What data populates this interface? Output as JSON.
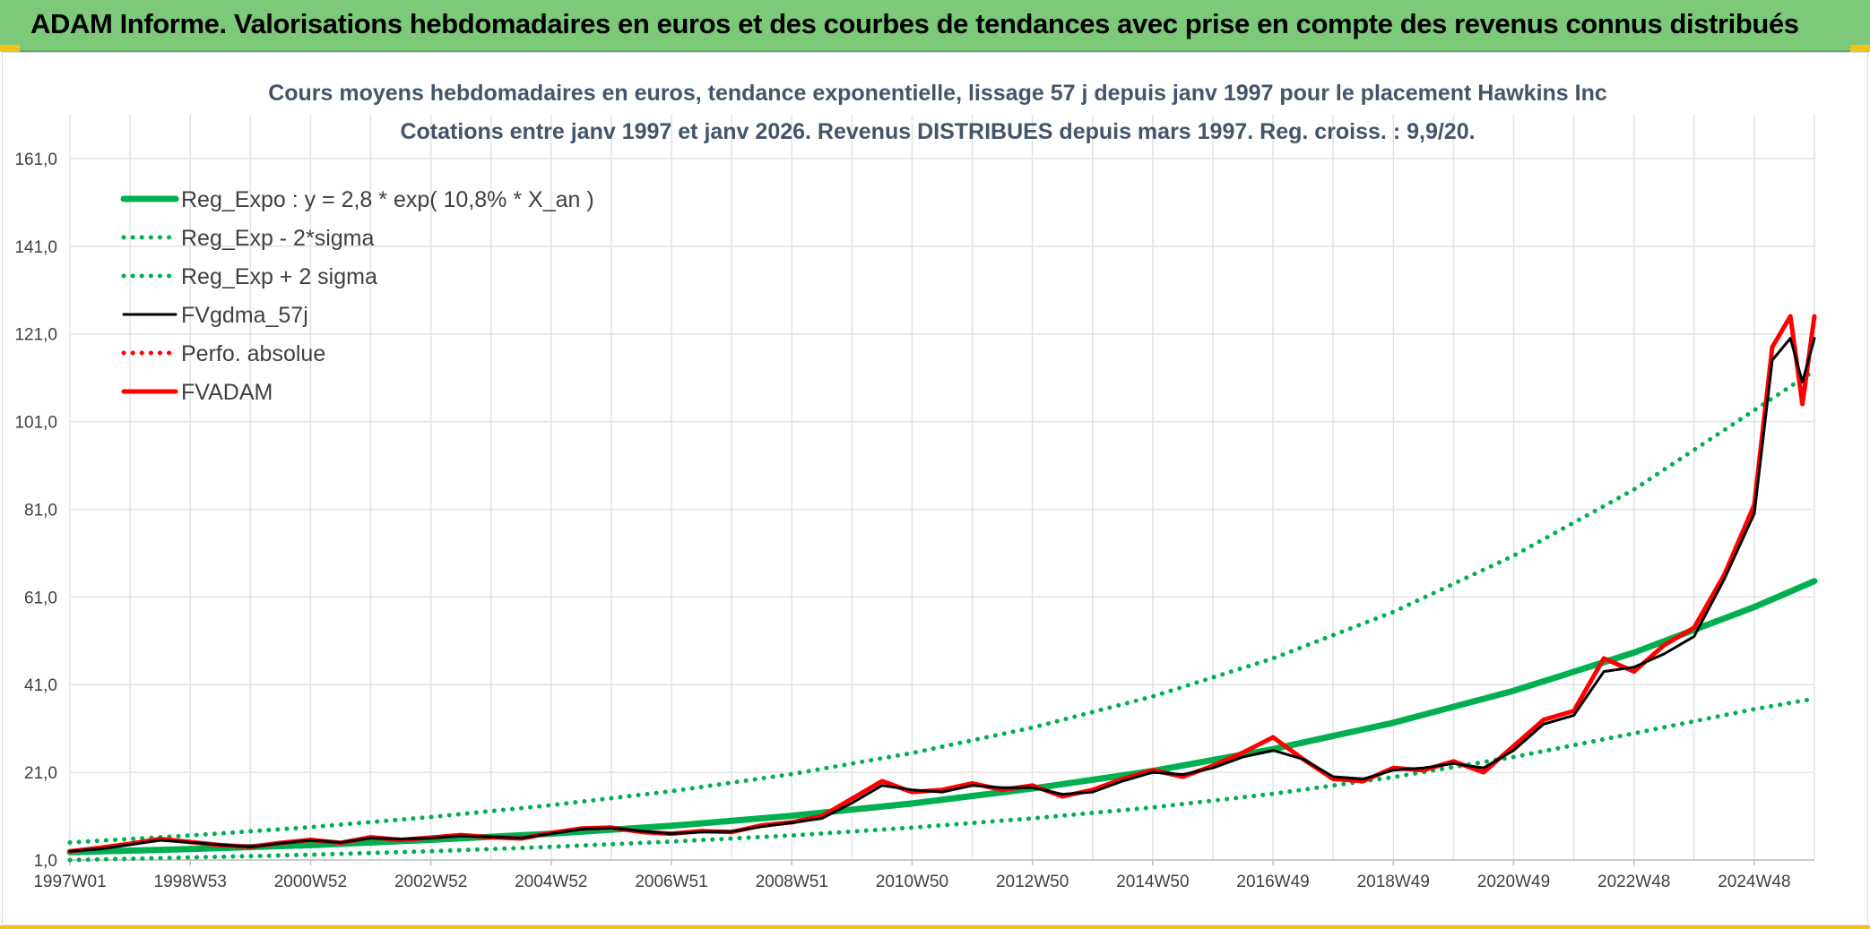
{
  "header": {
    "title": "ADAM Informe. Valorisations hebdomadaires en euros et des courbes de tendances avec prise en compte des revenus connus distribués"
  },
  "colors": {
    "header_bg": "#7dc97a",
    "accent_yellow": "#f2c21b",
    "reg_green": "#00b050",
    "fvadam_red": "#ff0000",
    "gdma_black": "#000000"
  },
  "chart_data": {
    "type": "line",
    "title_line1": "Cours moyens hebdomadaires en euros, tendance exponentielle, lissage 57 j depuis janv 1997 pour le placement Hawkins Inc",
    "title_line2": "Cotations entre janv 1997 et janv 2026. Revenus DISTRIBUES depuis mars 1997. Reg. croiss. : 9,9/20.",
    "xlabel": "",
    "ylabel": "",
    "x_range": [
      1997.0,
      2026.0
    ],
    "ylim": [
      1,
      171
    ],
    "y_ticks": [
      1,
      21,
      41,
      61,
      81,
      101,
      121,
      141,
      161
    ],
    "y_tick_labels": [
      "1,0",
      "21,0",
      "41,0",
      "61,0",
      "81,0",
      "101,0",
      "121,0",
      "141,0",
      "161,0"
    ],
    "x_tick_labels": [
      {
        "label": "1997W01",
        "x": 1997.0
      },
      {
        "label": "1998W53",
        "x": 1999.0
      },
      {
        "label": "2000W52",
        "x": 2001.0
      },
      {
        "label": "2002W52",
        "x": 2003.0
      },
      {
        "label": "2004W52",
        "x": 2005.0
      },
      {
        "label": "2006W51",
        "x": 2007.0
      },
      {
        "label": "2008W51",
        "x": 2009.0
      },
      {
        "label": "2010W50",
        "x": 2011.0
      },
      {
        "label": "2012W50",
        "x": 2013.0
      },
      {
        "label": "2014W50",
        "x": 2015.0
      },
      {
        "label": "2016W49",
        "x": 2017.0
      },
      {
        "label": "2018W49",
        "x": 2019.0
      },
      {
        "label": "2020W49",
        "x": 2021.0
      },
      {
        "label": "2022W48",
        "x": 2023.0
      },
      {
        "label": "2024W48",
        "x": 2025.0
      }
    ],
    "grid": true,
    "legend_position": "top-left",
    "series": [
      {
        "name": "Reg_Expo : y = 2,8 * exp( 10,8% *  X_an )",
        "style": "solid-thick",
        "color": "#00b050",
        "x": [
          1997.0,
          1999.0,
          2001.0,
          2003.0,
          2005.0,
          2007.0,
          2009.0,
          2011.0,
          2013.0,
          2015.0,
          2017.0,
          2019.0,
          2021.0,
          2023.0,
          2025.0,
          2026.0
        ],
        "values": [
          2.8,
          3.5,
          4.4,
          5.6,
          7.0,
          8.8,
          11.1,
          13.9,
          17.3,
          21.3,
          26.3,
          32.3,
          39.6,
          48.3,
          58.7,
          64.6
        ]
      },
      {
        "name": "Reg_Exp - 2*sigma",
        "style": "dotted",
        "color": "#00b050",
        "x": [
          1997.0,
          1999.0,
          2001.0,
          2003.0,
          2005.0,
          2007.0,
          2009.0,
          2011.0,
          2013.0,
          2015.0,
          2017.0,
          2019.0,
          2021.0,
          2023.0,
          2025.0,
          2026.0
        ],
        "values": [
          1.0,
          1.6,
          2.2,
          3.0,
          4.0,
          5.2,
          6.6,
          8.4,
          10.5,
          13.0,
          16.1,
          19.9,
          24.5,
          29.9,
          35.4,
          37.8
        ]
      },
      {
        "name": "Reg_Exp + 2 sigma",
        "style": "dotted",
        "color": "#00b050",
        "x": [
          1997.0,
          1999.0,
          2001.0,
          2003.0,
          2005.0,
          2007.0,
          2009.0,
          2011.0,
          2013.0,
          2015.0,
          2017.0,
          2019.0,
          2021.0,
          2023.0,
          2025.0,
          2026.0
        ],
        "values": [
          5.0,
          6.6,
          8.5,
          10.8,
          13.5,
          16.7,
          20.6,
          25.4,
          31.2,
          38.3,
          47.0,
          57.6,
          70.4,
          85.5,
          103.6,
          112.6
        ]
      },
      {
        "name": "FVgdma_57j",
        "style": "solid",
        "color": "#000000",
        "x": [
          1997.0,
          1997.5,
          1998.0,
          1998.5,
          1999.0,
          1999.5,
          2000.0,
          2000.5,
          2001.0,
          2001.5,
          2002.0,
          2002.5,
          2003.0,
          2003.5,
          2004.0,
          2004.5,
          2005.0,
          2005.5,
          2006.0,
          2006.5,
          2007.0,
          2007.5,
          2008.0,
          2008.5,
          2009.0,
          2009.5,
          2010.0,
          2010.5,
          2011.0,
          2011.5,
          2012.0,
          2012.5,
          2013.0,
          2013.5,
          2014.0,
          2014.5,
          2015.0,
          2015.5,
          2016.0,
          2016.5,
          2017.0,
          2017.5,
          2018.0,
          2018.5,
          2019.0,
          2019.5,
          2020.0,
          2020.5,
          2021.0,
          2021.5,
          2022.0,
          2022.5,
          2023.0,
          2023.5,
          2024.0,
          2024.5,
          2025.0,
          2025.3,
          2025.6,
          2025.8,
          2026.0
        ],
        "values": [
          3.0,
          3.5,
          4.5,
          5.5,
          5.0,
          4.5,
          4.0,
          4.8,
          5.5,
          5.0,
          6.0,
          5.8,
          6.0,
          6.5,
          6.3,
          6.0,
          7.0,
          8.0,
          8.3,
          7.6,
          7.0,
          7.4,
          7.5,
          8.6,
          9.5,
          10.5,
          14.0,
          18.0,
          17.0,
          16.5,
          18.0,
          17.5,
          17.5,
          16.0,
          16.5,
          19.0,
          21.0,
          20.5,
          22.0,
          24.5,
          26.0,
          24.0,
          20.0,
          19.5,
          21.5,
          22.0,
          23.0,
          22.0,
          26.0,
          32.0,
          34.0,
          44.0,
          45.0,
          48.0,
          52.0,
          65.0,
          80.0,
          115.0,
          120.0,
          110.0,
          120.0
        ]
      },
      {
        "name": "Perfo. absolue",
        "style": "dotted",
        "color": "#ff0000",
        "x": [],
        "values": []
      },
      {
        "name": "FVADAM",
        "style": "solid-thick",
        "color": "#ff0000",
        "x": [
          1997.0,
          1997.5,
          1998.0,
          1998.5,
          1999.0,
          1999.5,
          2000.0,
          2000.5,
          2001.0,
          2001.5,
          2002.0,
          2002.5,
          2003.0,
          2003.5,
          2004.0,
          2004.5,
          2005.0,
          2005.5,
          2006.0,
          2006.5,
          2007.0,
          2007.5,
          2008.0,
          2008.5,
          2009.0,
          2009.5,
          2010.0,
          2010.5,
          2011.0,
          2011.5,
          2012.0,
          2012.5,
          2013.0,
          2013.5,
          2014.0,
          2014.5,
          2015.0,
          2015.5,
          2016.0,
          2016.5,
          2017.0,
          2017.5,
          2018.0,
          2018.5,
          2019.0,
          2019.5,
          2020.0,
          2020.5,
          2021.0,
          2021.5,
          2022.0,
          2022.5,
          2023.0,
          2023.5,
          2024.0,
          2024.5,
          2025.0,
          2025.3,
          2025.6,
          2025.8,
          2026.0
        ],
        "values": [
          3.0,
          3.8,
          4.7,
          5.8,
          5.1,
          4.4,
          4.0,
          4.9,
          5.6,
          4.9,
          6.2,
          5.6,
          6.1,
          6.7,
          6.2,
          5.9,
          7.2,
          8.2,
          8.4,
          7.4,
          7.0,
          7.6,
          7.4,
          8.9,
          9.6,
          11.0,
          15.0,
          19.0,
          16.5,
          17.0,
          18.5,
          17.0,
          18.0,
          15.5,
          17.0,
          19.5,
          21.5,
          20.0,
          22.5,
          25.5,
          29.0,
          24.0,
          19.5,
          19.0,
          22.0,
          21.5,
          23.5,
          21.0,
          27.0,
          33.0,
          35.0,
          47.0,
          44.0,
          50.0,
          54.0,
          66.0,
          82.0,
          118.0,
          125.0,
          105.0,
          125.0
        ]
      }
    ]
  }
}
